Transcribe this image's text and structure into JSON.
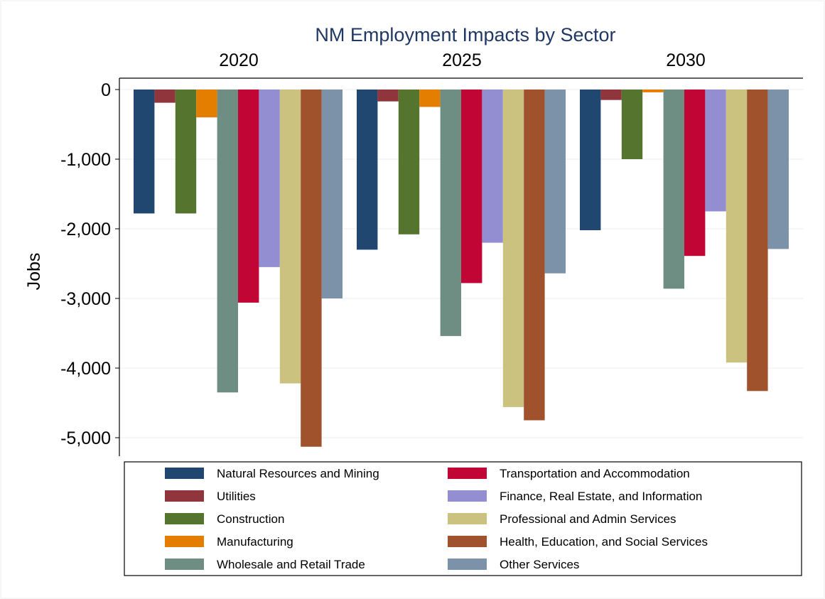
{
  "chart_data": {
    "type": "bar",
    "title": "NM Employment Impacts by Sector",
    "ylabel": "Jobs",
    "xlabel": "",
    "ylim": [
      -5200,
      150
    ],
    "yticks": [
      0,
      -1000,
      -2000,
      -3000,
      -4000,
      -5000
    ],
    "ytick_labels": [
      "0",
      "-1,000",
      "-2,000",
      "-3,000",
      "-4,000",
      "-5,000"
    ],
    "grid": true,
    "legend_position": "bottom",
    "categories": [
      "2020",
      "2025",
      "2030"
    ],
    "series": [
      {
        "name": "Natural Resources and Mining",
        "color": "#1f4770",
        "values": [
          -1780,
          -2300,
          -2020
        ]
      },
      {
        "name": "Utilities",
        "color": "#90353b",
        "values": [
          -190,
          -170,
          -150
        ]
      },
      {
        "name": "Construction",
        "color": "#55752f",
        "values": [
          -1780,
          -2080,
          -1000
        ]
      },
      {
        "name": "Manufacturing",
        "color": "#e37e00",
        "values": [
          -400,
          -250,
          -40
        ]
      },
      {
        "name": "Wholesale and Retail Trade",
        "color": "#6e8e84",
        "values": [
          -4350,
          -3540,
          -2860
        ]
      },
      {
        "name": "Transportation and Accommodation",
        "color": "#c10534",
        "values": [
          -3060,
          -2780,
          -2390
        ]
      },
      {
        "name": "Finance, Real Estate, and Information",
        "color": "#938dd2",
        "values": [
          -2550,
          -2200,
          -1750
        ]
      },
      {
        "name": "Professional and Admin Services",
        "color": "#cac27e",
        "values": [
          -4220,
          -4560,
          -3920
        ]
      },
      {
        "name": "Health, Education, and Social Services",
        "color": "#a0522d",
        "values": [
          -5130,
          -4750,
          -4330
        ]
      },
      {
        "name": "Other Services",
        "color": "#7b92a8",
        "values": [
          -3000,
          -2640,
          -2290
        ]
      }
    ]
  }
}
